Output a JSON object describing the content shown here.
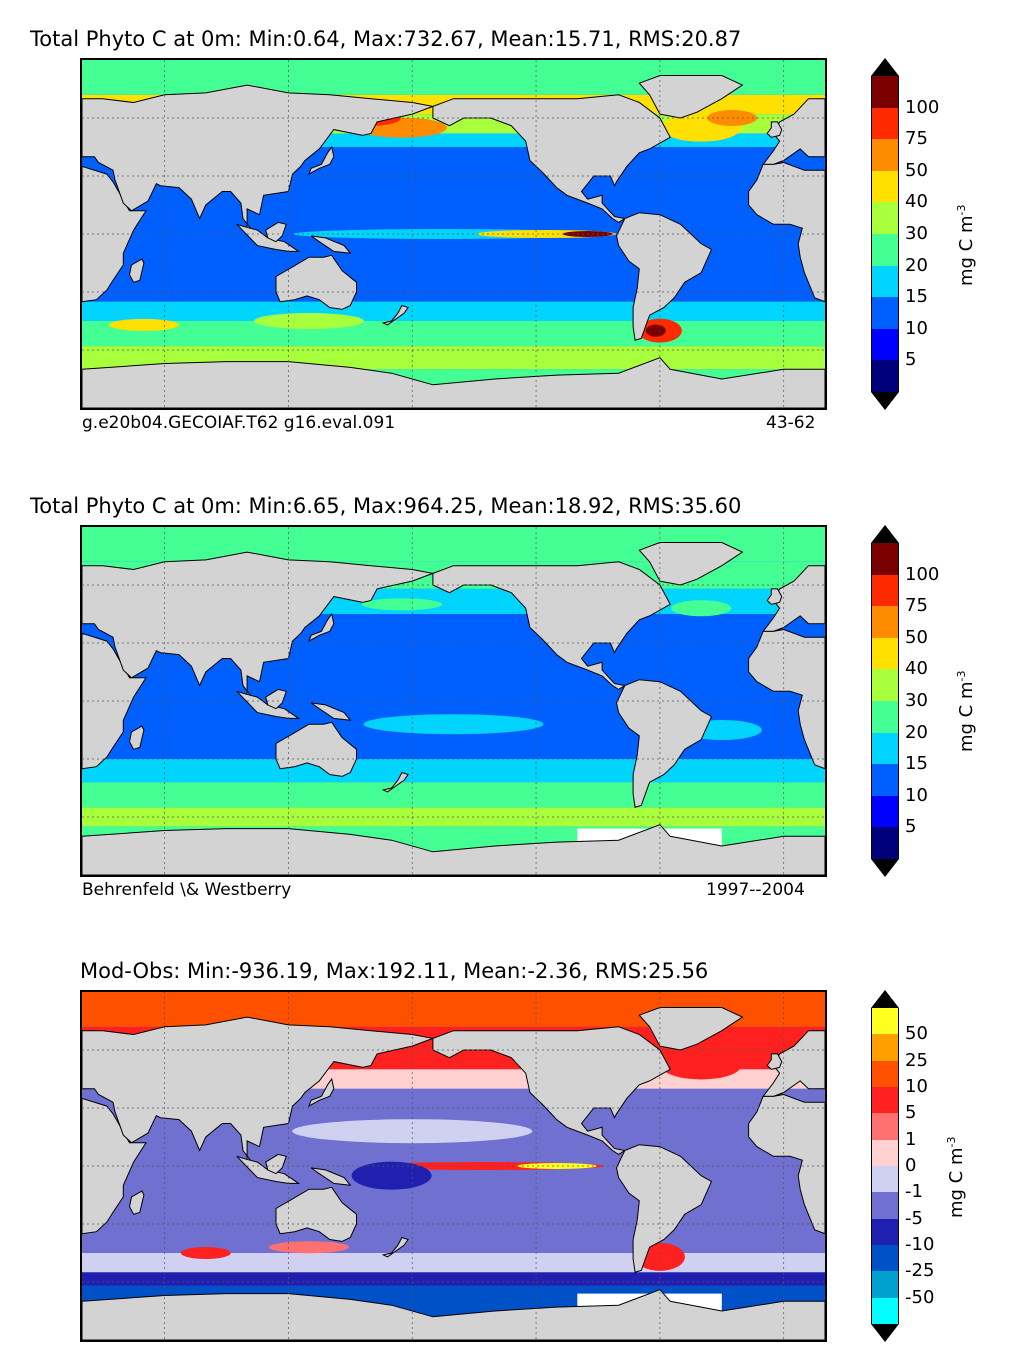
{
  "panels": [
    {
      "title": "Total Phyto C at 0m: Min:0.64, Max:732.67, Mean:15.71, RMS:20.87",
      "footer_left": "g.e20b04.GECOIAF.T62 g16.eval.091",
      "footer_right": "43-62",
      "scale": "abs",
      "colorbar": {
        "unit": "mg C m",
        "unit_exp": "-3",
        "ticks": [
          "100",
          "75",
          "50",
          "40",
          "30",
          "20",
          "15",
          "10",
          "5"
        ],
        "colors": [
          "#7a0000",
          "#ff2a00",
          "#ff8c00",
          "#ffe000",
          "#a8ff3c",
          "#44ff94",
          "#00d4ff",
          "#0060ff",
          "#0000ff",
          "#00007a"
        ],
        "over_color": "#000000",
        "under_color": "#000000"
      }
    },
    {
      "title": "Total Phyto C at 0m: Min:6.65, Max:964.25, Mean:18.92, RMS:35.60",
      "footer_left": "Behrenfeld \\& Westberry",
      "footer_right": "1997--2004",
      "scale": "abs",
      "colorbar": {
        "unit": "mg C m",
        "unit_exp": "-3",
        "ticks": [
          "100",
          "75",
          "50",
          "40",
          "30",
          "20",
          "15",
          "10",
          "5"
        ],
        "colors": [
          "#7a0000",
          "#ff2a00",
          "#ff8c00",
          "#ffe000",
          "#a8ff3c",
          "#44ff94",
          "#00d4ff",
          "#0060ff",
          "#0000ff",
          "#00007a"
        ],
        "over_color": "#000000",
        "under_color": "#000000"
      }
    },
    {
      "title": "Mod-Obs: Min:-936.19, Max:192.11, Mean:-2.36, RMS:25.56",
      "footer_left": "",
      "footer_right": "",
      "scale": "diff",
      "colorbar": {
        "unit": "mg C m",
        "unit_exp": "-3",
        "ticks": [
          "50",
          "25",
          "10",
          "5",
          "1",
          "0",
          "-1",
          "-5",
          "-10",
          "-25",
          "-50"
        ],
        "colors": [
          "#ffff20",
          "#ffa000",
          "#ff5000",
          "#ff2020",
          "#ff7070",
          "#ffd0d0",
          "#d0d0f0",
          "#7070d0",
          "#2020b0",
          "#0050c8",
          "#00a0d0",
          "#00ffff"
        ],
        "over_color": "#000000",
        "under_color": "#000000"
      }
    }
  ],
  "map_colors": {
    "land": "#d3d3d3",
    "ice": "#ffffff",
    "grid": "#555555"
  }
}
